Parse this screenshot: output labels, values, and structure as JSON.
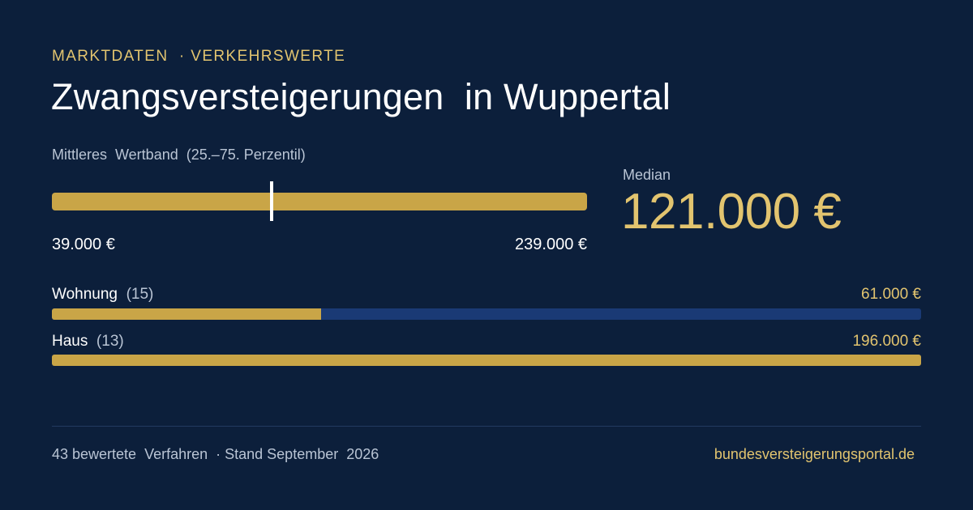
{
  "header": {
    "eyebrow": "MARKTDATEN  · VERKEHRSWERTE",
    "title": "Zwangsversteigerungen  in Wuppertal"
  },
  "value_band": {
    "label": "Mittleres  Wertband  (25.–75. Perzentil)",
    "min_label": "39.000 €",
    "max_label": "239.000 €",
    "min_value": 39000,
    "max_value": 239000,
    "median_value": 121000
  },
  "median": {
    "label": "Median",
    "value": "121.000 €"
  },
  "categories": [
    {
      "name": "Wohnung",
      "count": "(15)",
      "value": "61.000 €",
      "fill_fraction": 0.31
    },
    {
      "name": "Haus",
      "count": "(13)",
      "value": "196.000 €",
      "fill_fraction": 1.0
    }
  ],
  "footer": {
    "summary": "43 bewertete  Verfahren  · Stand September  2026",
    "source": "bundesversteigerungsportal.de"
  },
  "colors": {
    "background": "#0c1f3b",
    "accent_gold": "#e2c46f",
    "bar_gold": "#c9a547",
    "bar_track": "#1a3a75",
    "muted_text": "#b9c4d4"
  }
}
